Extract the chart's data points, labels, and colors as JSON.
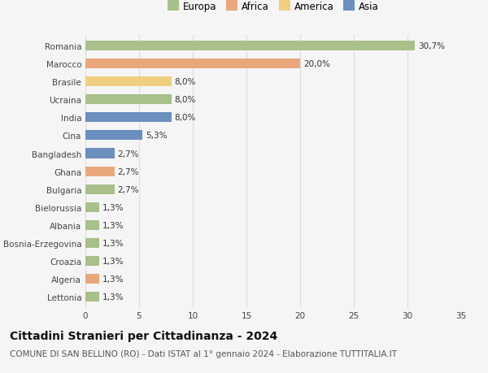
{
  "categories": [
    "Romania",
    "Marocco",
    "Brasile",
    "Ucraina",
    "India",
    "Cina",
    "Bangladesh",
    "Ghana",
    "Bulgaria",
    "Bielorussia",
    "Albania",
    "Bosnia-Erzegovina",
    "Croazia",
    "Algeria",
    "Lettonia"
  ],
  "values": [
    30.7,
    20.0,
    8.0,
    8.0,
    8.0,
    5.3,
    2.7,
    2.7,
    2.7,
    1.3,
    1.3,
    1.3,
    1.3,
    1.3,
    1.3
  ],
  "labels": [
    "30,7%",
    "20,0%",
    "8,0%",
    "8,0%",
    "8,0%",
    "5,3%",
    "2,7%",
    "2,7%",
    "2,7%",
    "1,3%",
    "1,3%",
    "1,3%",
    "1,3%",
    "1,3%",
    "1,3%"
  ],
  "continents": [
    "Europa",
    "Africa",
    "America",
    "Europa",
    "Asia",
    "Asia",
    "Asia",
    "Africa",
    "Europa",
    "Europa",
    "Europa",
    "Europa",
    "Europa",
    "Africa",
    "Europa"
  ],
  "continent_colors": {
    "Europa": "#a8c08a",
    "Africa": "#e8a87c",
    "America": "#f0d080",
    "Asia": "#6b8fbf"
  },
  "legend_order": [
    "Europa",
    "Africa",
    "America",
    "Asia"
  ],
  "xlim": [
    0,
    35
  ],
  "xticks": [
    0,
    5,
    10,
    15,
    20,
    25,
    30,
    35
  ],
  "title": "Cittadini Stranieri per Cittadinanza - 2024",
  "subtitle": "COMUNE DI SAN BELLINO (RO) - Dati ISTAT al 1° gennaio 2024 - Elaborazione TUTTITALIA.IT",
  "background_color": "#f5f5f5",
  "grid_color": "#dddddd",
  "bar_height": 0.55,
  "title_fontsize": 10,
  "subtitle_fontsize": 7.5,
  "label_fontsize": 7.5,
  "tick_fontsize": 7.5,
  "legend_fontsize": 8.5
}
